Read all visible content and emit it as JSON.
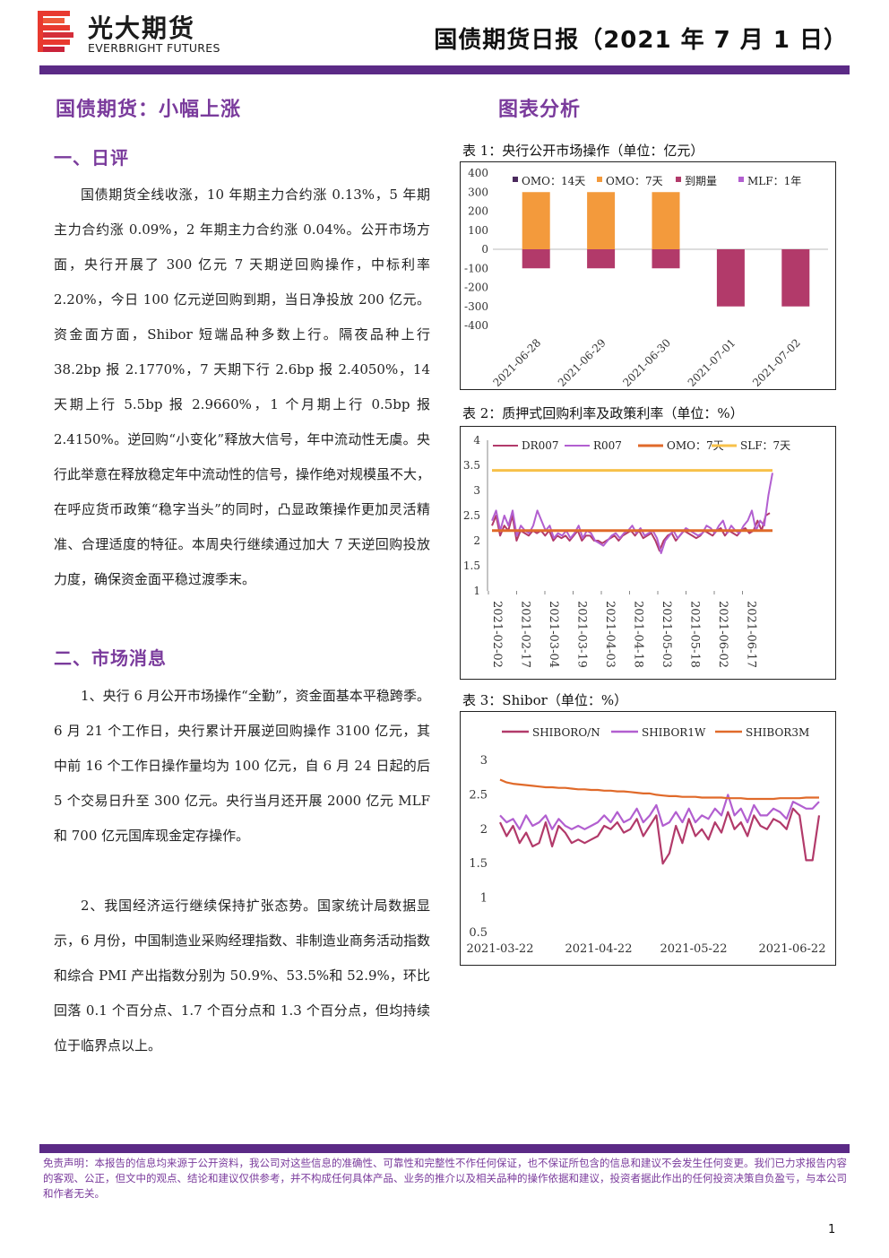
{
  "header": {
    "logo_cn": "光大期货",
    "logo_en": "EVERBRIGHT FUTURES",
    "report_title": "国债期货日报（2021 年 7 月 1 日）",
    "accent_color": "#5b2a86",
    "logo_color": "#e8392f"
  },
  "left": {
    "headline": "国债期货：小幅上涨",
    "section1_title": "一、日评",
    "section1_text": "国债期货全线收涨，10 年期主力合约涨 0.13%，5 年期主力合约涨 0.09%，2 年期主力合约涨 0.04%。公开市场方面，央行开展了 300 亿元 7 天期逆回购操作，中标利率 2.20%，今日 100 亿元逆回购到期，当日净投放 200 亿元。资金面方面，Shibor 短端品种多数上行。隔夜品种上行 38.2bp 报 2.1770%，7 天期下行 2.6bp 报 2.4050%，14 天期上行 5.5bp 报 2.9660%，1 个月期上行 0.5bp 报 2.4150%。逆回购“小变化”释放大信号，年中流动性无虞。央行此举意在释放稳定年中流动性的信号，操作绝对规模虽不大，在呼应货币政策“稳字当头”的同时，凸显政策操作更加灵活精准、合理适度的特征。本周央行继续通过加大 7 天逆回购投放力度，确保资金面平稳过渡季末。",
    "section2_title": "二、市场消息",
    "news1": "1、央行 6 月公开市场操作“全勤”，资金面基本平稳跨季。6 月 21 个工作日，央行累计开展逆回购操作 3100 亿元，其中前 16 个工作日操作量均为 100 亿元，自 6 月 24 日起的后 5 个交易日升至 300 亿元。央行当月还开展 2000 亿元 MLF 和 700 亿元国库现金定存操作。",
    "news2": "2、我国经济运行继续保持扩张态势。国家统计局数据显示，6 月份，中国制造业采购经理指数、非制造业商务活动指数和综合 PMI 产出指数分别为 50.9%、53.5%和 52.9%，环比回落 0.1 个百分点、1.7 个百分点和 1.3 个百分点，但均持续位于临界点以上。"
  },
  "right": {
    "section_title": "图表分析"
  },
  "chart_data": [
    {
      "type": "bar",
      "title": "表 1：央行公开市场操作（单位：亿元）",
      "categories": [
        "2021-06-28",
        "2021-06-29",
        "2021-06-30",
        "2021-07-01",
        "2021-07-02"
      ],
      "ylim": [
        -400,
        400
      ],
      "yticks": [
        "400",
        "300",
        "200",
        "100",
        "0",
        "-100",
        "-200",
        "-300",
        "-400"
      ],
      "legend": "top",
      "series": [
        {
          "name": "OMO：14天",
          "color": "#4b2a5e",
          "values": [
            0,
            0,
            0,
            0,
            0
          ]
        },
        {
          "name": "OMO：7天",
          "color": "#f39a3c",
          "values": [
            300,
            300,
            300,
            0,
            0
          ]
        },
        {
          "name": "到期量",
          "color": "#b23a6a",
          "values": [
            -100,
            -100,
            -100,
            -300,
            -300
          ]
        },
        {
          "name": "MLF：1年",
          "color": "#b25fd0",
          "values": [
            0,
            0,
            0,
            0,
            0
          ]
        }
      ]
    },
    {
      "type": "line",
      "title": "表 2：质押式回购利率及政策利率（单位：%）",
      "ylim": [
        1,
        4
      ],
      "yticks": [
        "4",
        "3.5",
        "3",
        "2.5",
        "2",
        "1.5",
        "1"
      ],
      "xticks": [
        "2021-02-02",
        "2021-02-17",
        "2021-03-04",
        "2021-03-19",
        "2021-04-03",
        "2021-04-18",
        "2021-05-03",
        "2021-05-18",
        "2021-06-02",
        "2021-06-17"
      ],
      "legend": "top",
      "series": [
        {
          "name": "DR007",
          "color": "#b23a6a",
          "values": [
            2.3,
            2.5,
            2.1,
            2.3,
            2.2,
            2.5,
            2.0,
            2.2,
            2.15,
            2.1,
            2.2,
            2.15,
            2.2,
            2.1,
            2.2,
            2.0,
            2.1,
            2.05,
            2.1,
            2.0,
            2.1,
            2.2,
            2.0,
            2.1,
            2.1,
            2.0,
            2.0,
            1.95,
            2.0,
            2.05,
            2.1,
            2.0,
            2.1,
            2.15,
            2.2,
            2.1,
            2.2,
            2.05,
            2.1,
            2.15,
            2.0,
            1.8,
            2.0,
            2.1,
            2.15,
            2.0,
            2.1,
            2.2,
            2.15,
            2.1,
            2.05,
            2.1,
            2.2,
            2.15,
            2.1,
            2.2,
            2.25,
            2.1,
            2.2,
            2.15,
            2.1,
            2.2,
            2.25,
            2.15,
            2.2,
            2.4,
            2.2,
            2.5,
            2.55
          ]
        },
        {
          "name": "R007",
          "color": "#b25fd0",
          "values": [
            2.4,
            2.6,
            2.2,
            2.5,
            2.3,
            2.6,
            2.1,
            2.3,
            2.2,
            2.15,
            2.3,
            2.6,
            2.4,
            2.2,
            2.3,
            2.05,
            2.15,
            2.1,
            2.2,
            2.05,
            2.15,
            2.3,
            2.05,
            2.2,
            2.15,
            2.0,
            1.95,
            1.9,
            2.0,
            2.1,
            2.15,
            2.05,
            2.15,
            2.2,
            2.3,
            2.15,
            2.25,
            2.1,
            2.15,
            2.2,
            2.05,
            1.75,
            2.0,
            2.1,
            2.2,
            2.05,
            2.15,
            2.25,
            2.2,
            2.15,
            2.1,
            2.15,
            2.3,
            2.25,
            2.15,
            2.3,
            2.4,
            2.15,
            2.3,
            2.2,
            2.15,
            2.3,
            2.4,
            2.6,
            2.2,
            2.4,
            2.3,
            2.9,
            3.35
          ]
        },
        {
          "name": "OMO：7天",
          "color": "#e06a2a",
          "values": [
            2.2,
            2.2
          ]
        },
        {
          "name": "SLF：7天",
          "color": "#f7c14a",
          "values": [
            3.4,
            3.4
          ]
        }
      ]
    },
    {
      "type": "line",
      "title": "表 3：Shibor（单位：%）",
      "ylim": [
        0.5,
        3
      ],
      "yticks": [
        "3",
        "2.5",
        "2",
        "1.5",
        "1",
        "0.5"
      ],
      "xticks": [
        "2021-03-22",
        "2021-04-22",
        "2021-05-22",
        "2021-06-22"
      ],
      "legend": "top",
      "series": [
        {
          "name": "SHIBORO/N",
          "color": "#b23a6a",
          "values": [
            2.1,
            1.9,
            2.05,
            1.8,
            1.95,
            1.75,
            1.8,
            2.1,
            1.75,
            2.05,
            1.95,
            1.8,
            1.85,
            1.8,
            1.85,
            1.9,
            2.05,
            2.0,
            2.1,
            1.95,
            2.0,
            2.15,
            1.9,
            2.05,
            2.2,
            1.5,
            1.65,
            2.05,
            1.8,
            2.15,
            1.9,
            2.0,
            1.85,
            2.1,
            1.95,
            2.25,
            2.0,
            2.1,
            1.9,
            2.2,
            2.05,
            2.0,
            2.15,
            2.1,
            2.0,
            2.3,
            2.2,
            1.55,
            1.55,
            2.2
          ]
        },
        {
          "name": "SHIBOR1W",
          "color": "#b25fd0",
          "values": [
            2.2,
            2.1,
            2.15,
            2.0,
            2.2,
            2.05,
            2.1,
            2.2,
            2.0,
            2.15,
            2.05,
            2.0,
            2.05,
            2.0,
            2.05,
            2.1,
            2.2,
            2.1,
            2.25,
            2.1,
            2.15,
            2.3,
            2.1,
            2.2,
            2.35,
            2.05,
            2.1,
            2.25,
            2.1,
            2.3,
            2.1,
            2.2,
            2.15,
            2.3,
            2.2,
            2.5,
            2.2,
            2.3,
            2.1,
            2.35,
            2.2,
            2.2,
            2.3,
            2.25,
            2.15,
            2.4,
            2.35,
            2.3,
            2.3,
            2.4
          ]
        },
        {
          "name": "SHIBOR3M",
          "color": "#e06a2a",
          "values": [
            2.72,
            2.68,
            2.66,
            2.65,
            2.64,
            2.63,
            2.62,
            2.61,
            2.61,
            2.6,
            2.6,
            2.59,
            2.58,
            2.58,
            2.57,
            2.57,
            2.56,
            2.56,
            2.55,
            2.55,
            2.54,
            2.53,
            2.52,
            2.52,
            2.5,
            2.49,
            2.48,
            2.48,
            2.47,
            2.47,
            2.47,
            2.46,
            2.46,
            2.46,
            2.46,
            2.45,
            2.45,
            2.45,
            2.44,
            2.44,
            2.44,
            2.44,
            2.44,
            2.45,
            2.45,
            2.45,
            2.45,
            2.46,
            2.46,
            2.46
          ]
        }
      ]
    }
  ],
  "footer": {
    "disclaimer": "免责声明：本报告的信息均来源于公开资料，我公司对这些信息的准确性、可靠性和完整性不作任何保证，也不保证所包含的信息和建议不会发生任何变更。我们已力求报告内容的客观、公正，但文中的观点、结论和建议仅供参考，并不构成任何具体产品、业务的推介以及相关品种的操作依据和建议，投资者据此作出的任何投资决策自负盈亏，与本公司和作者无关。",
    "page_number": "1"
  }
}
